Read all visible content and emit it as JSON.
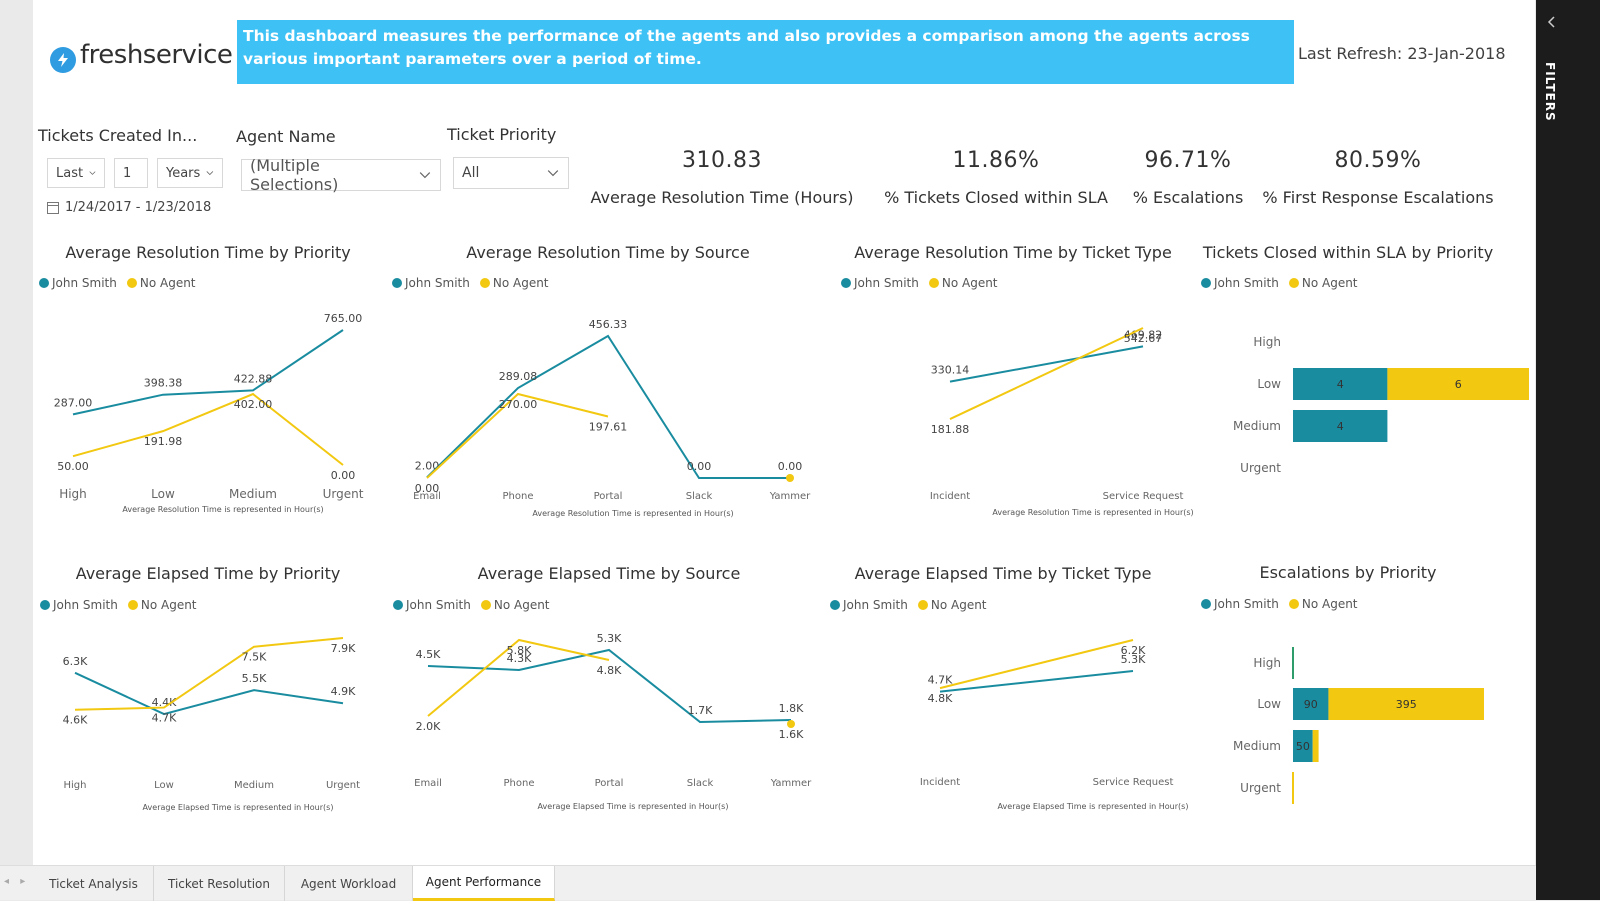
{
  "brand": {
    "name": "freshservice"
  },
  "banner": {
    "text": "This dashboard measures the performance of the agents and also provides a comparison among the agents across various important parameters over a period of time."
  },
  "refresh": {
    "text": "Last Refresh: 23-Jan-2018"
  },
  "slicers": {
    "tickets_created": {
      "title": "Tickets Created In...",
      "period": "Last",
      "count": "1",
      "unit": "Years",
      "range": "1/24/2017 - 1/23/2018"
    },
    "agent_name": {
      "title": "Agent Name",
      "value": "(Multiple Selections)"
    },
    "priority": {
      "title": "Ticket Priority",
      "value": "All"
    }
  },
  "kpis": [
    {
      "value": "310.83",
      "label": "Average Resolution Time (Hours)"
    },
    {
      "value": "11.86%",
      "label": "% Tickets Closed within SLA"
    },
    {
      "value": "96.71%",
      "label": "% Escalations"
    },
    {
      "value": "80.59%",
      "label": "% First Response Escalations"
    }
  ],
  "colors": {
    "john": "#1a8ca0",
    "noagent": "#f2c811"
  },
  "legend": {
    "john": "John Smith",
    "noagent": "No Agent"
  },
  "chart_data": [
    {
      "id": "res-priority",
      "type": "line",
      "title": "Average Resolution Time by Priority",
      "footnote": "Average Resolution Time is represented in Hour(s)",
      "categories": [
        "High",
        "Low",
        "Medium",
        "Urgent"
      ],
      "series": [
        {
          "name": "John Smith",
          "values": [
            287.0,
            398.38,
            422.88,
            765.0
          ],
          "labels": [
            "287.00",
            "398.38",
            "422.88",
            "765.00"
          ]
        },
        {
          "name": "No Agent",
          "values": [
            50.0,
            191.98,
            402.0,
            0.0
          ],
          "labels": [
            "50.00",
            "191.98",
            "402.00",
            "0.00"
          ]
        }
      ]
    },
    {
      "id": "res-source",
      "type": "line",
      "title": "Average Resolution Time by Source",
      "footnote": "Average Resolution Time is represented in Hour(s)",
      "categories": [
        "Email",
        "Phone",
        "Portal",
        "Slack",
        "Yammer"
      ],
      "series": [
        {
          "name": "John Smith",
          "values": [
            2.0,
            289.08,
            456.33,
            0.0,
            0.0
          ],
          "labels": [
            "2.00",
            "289.08",
            "456.33",
            "0.00",
            "0.00"
          ]
        },
        {
          "name": "No Agent",
          "values": [
            0.0,
            270.0,
            197.61,
            null,
            0.0
          ],
          "labels": [
            "0.00",
            "270.00",
            "197.61",
            "",
            ""
          ]
        }
      ]
    },
    {
      "id": "res-type",
      "type": "line",
      "title": "Average Resolution Time by Ticket Type",
      "footnote": "Average Resolution Time is represented in Hour(s)",
      "categories": [
        "Incident",
        "Service Request"
      ],
      "series": [
        {
          "name": "John Smith",
          "values": [
            330.14,
            469.82
          ],
          "labels": [
            "330.14",
            "469.82"
          ]
        },
        {
          "name": "No Agent",
          "values": [
            181.88,
            542.67
          ],
          "labels": [
            "181.88",
            "542.67"
          ]
        }
      ]
    },
    {
      "id": "sla-priority",
      "type": "bar",
      "title": "Tickets Closed within SLA by Priority",
      "categories": [
        "High",
        "Low",
        "Medium",
        "Urgent"
      ],
      "series": [
        {
          "name": "John Smith",
          "values": [
            0,
            4,
            4,
            0
          ]
        },
        {
          "name": "No Agent",
          "values": [
            0,
            6,
            0,
            0
          ]
        }
      ]
    },
    {
      "id": "el-priority",
      "type": "line",
      "title": "Average Elapsed Time by Priority",
      "footnote": "Average Elapsed Time is represented in Hour(s)",
      "categories": [
        "High",
        "Low",
        "Medium",
        "Urgent"
      ],
      "series": [
        {
          "name": "John Smith",
          "values": [
            6300,
            4400,
            5500,
            4900
          ],
          "labels": [
            "6.3K",
            "4.4K",
            "5.5K",
            "4.9K"
          ]
        },
        {
          "name": "No Agent",
          "values": [
            4600,
            4700,
            7500,
            7900
          ],
          "labels": [
            "4.6K",
            "4.7K",
            "7.5K",
            "7.9K"
          ]
        }
      ]
    },
    {
      "id": "el-source",
      "type": "line",
      "title": "Average Elapsed Time by Source",
      "footnote": "Average Elapsed Time is represented in Hour(s)",
      "categories": [
        "Email",
        "Phone",
        "Portal",
        "Slack",
        "Yammer"
      ],
      "series": [
        {
          "name": "John Smith",
          "values": [
            4500,
            4300,
            5300,
            1700,
            1800
          ],
          "labels": [
            "4.5K",
            "4.3K",
            "5.3K",
            "1.7K",
            "1.8K"
          ]
        },
        {
          "name": "No Agent",
          "values": [
            2000,
            5800,
            4800,
            null,
            1600
          ],
          "labels": [
            "2.0K",
            "5.8K",
            "4.8K",
            "",
            "1.6K"
          ]
        }
      ]
    },
    {
      "id": "el-type",
      "type": "line",
      "title": "Average Elapsed Time by Ticket Type",
      "footnote": "Average Elapsed Time is represented in Hour(s)",
      "categories": [
        "Incident",
        "Service Request"
      ],
      "series": [
        {
          "name": "John Smith",
          "values": [
            4700,
            5300
          ],
          "labels": [
            "4.7K",
            "5.3K"
          ]
        },
        {
          "name": "No Agent",
          "values": [
            4800,
            6200
          ],
          "labels": [
            "4.8K",
            "6.2K"
          ]
        }
      ]
    },
    {
      "id": "esc-priority",
      "type": "bar",
      "title": "Escalations by Priority",
      "categories": [
        "High",
        "Low",
        "Medium",
        "Urgent"
      ],
      "series": [
        {
          "name": "John Smith",
          "values": [
            0,
            90,
            50,
            0
          ]
        },
        {
          "name": "No Agent",
          "values": [
            0,
            395,
            15,
            0
          ]
        }
      ]
    }
  ],
  "tabs": [
    "Ticket Analysis",
    "Ticket Resolution",
    "Agent Workload",
    "Agent Performance"
  ],
  "sidebar": {
    "label": "FILTERS"
  }
}
